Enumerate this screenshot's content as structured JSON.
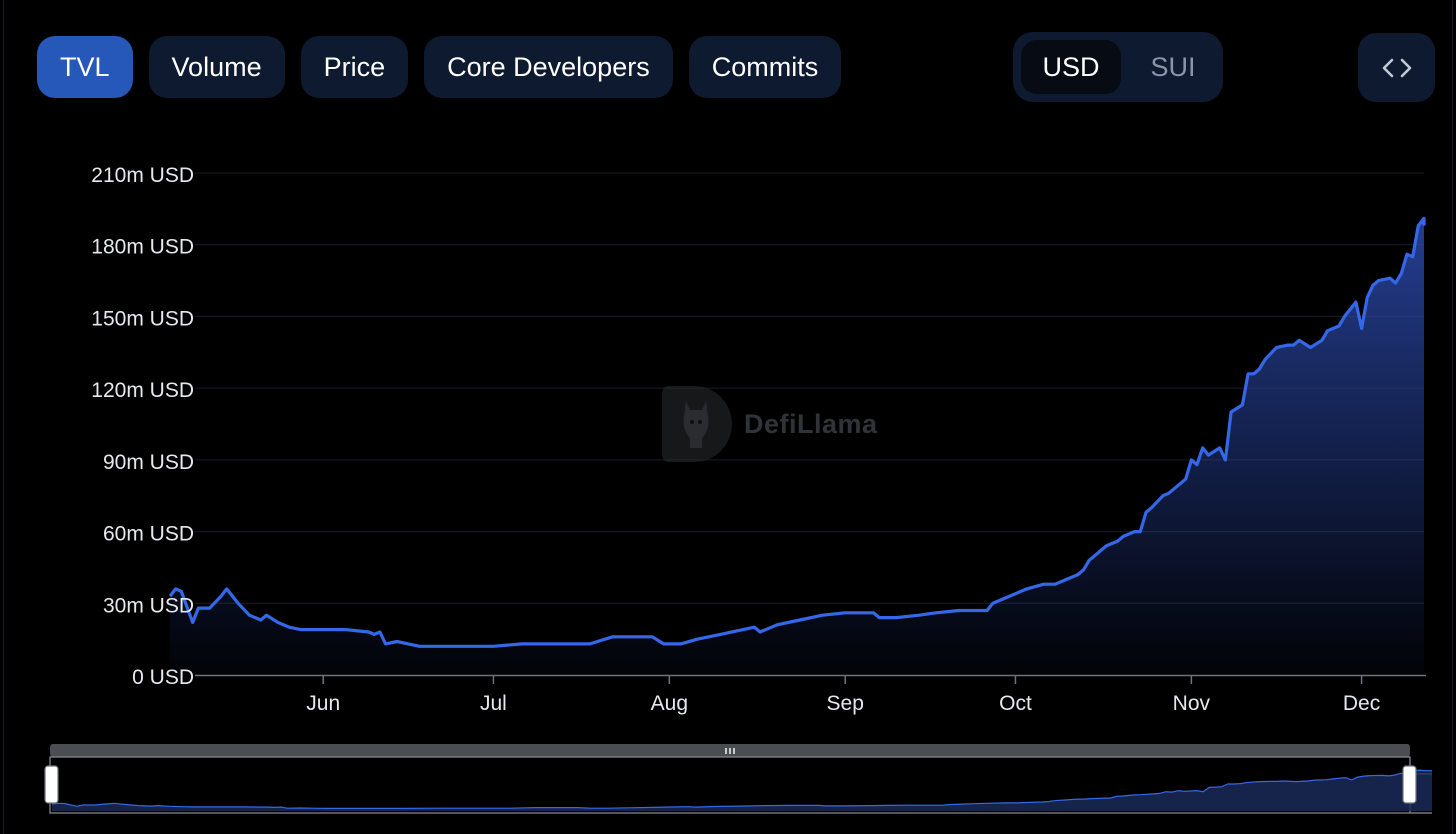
{
  "tabs": [
    {
      "label": "TVL",
      "active": true
    },
    {
      "label": "Volume",
      "active": false
    },
    {
      "label": "Price",
      "active": false
    },
    {
      "label": "Core Developers",
      "active": false
    },
    {
      "label": "Commits",
      "active": false
    }
  ],
  "currency": {
    "options": [
      "USD",
      "SUI"
    ],
    "selected": "USD"
  },
  "embed_icon": "code-brackets-icon",
  "watermark": {
    "text": "DefiLlama",
    "icon": "llama-logo-icon"
  },
  "colors": {
    "line": "#3468e8",
    "area_top": "#2b48a8",
    "tab_active": "#2558b9",
    "tab_bg": "#0e1a30",
    "background": "#000000"
  },
  "chart_data": {
    "type": "area",
    "title": "",
    "xlabel": "",
    "ylabel": "",
    "y_unit": "USD",
    "ylim": [
      0,
      210
    ],
    "y_ticks": [
      0,
      30,
      60,
      90,
      120,
      150,
      180,
      210
    ],
    "y_tick_labels": [
      "0 USD",
      "30m USD",
      "60m USD",
      "90m USD",
      "120m USD",
      "150m USD",
      "180m USD",
      "210m USD"
    ],
    "x_range": [
      "2023-05-05",
      "2023-12-12"
    ],
    "x_ticks": [
      "2023-06-01",
      "2023-07-01",
      "2023-08-01",
      "2023-09-01",
      "2023-10-01",
      "2023-11-01",
      "2023-12-01"
    ],
    "x_tick_labels": [
      "Jun",
      "Jul",
      "Aug",
      "Sep",
      "Oct",
      "Nov",
      "Dec"
    ],
    "grid": true,
    "series": [
      {
        "name": "",
        "unit": "m USD",
        "points": [
          [
            "2023-05-05",
            33
          ],
          [
            "2023-05-06",
            36
          ],
          [
            "2023-05-07",
            35
          ],
          [
            "2023-05-09",
            22
          ],
          [
            "2023-05-10",
            28
          ],
          [
            "2023-05-12",
            28
          ],
          [
            "2023-05-14",
            33
          ],
          [
            "2023-05-15",
            36
          ],
          [
            "2023-05-17",
            30
          ],
          [
            "2023-05-19",
            25
          ],
          [
            "2023-05-21",
            23
          ],
          [
            "2023-05-22",
            25
          ],
          [
            "2023-05-24",
            22
          ],
          [
            "2023-05-26",
            20
          ],
          [
            "2023-05-28",
            19
          ],
          [
            "2023-06-01",
            19
          ],
          [
            "2023-06-05",
            19
          ],
          [
            "2023-06-09",
            18
          ],
          [
            "2023-06-10",
            17
          ],
          [
            "2023-06-11",
            18
          ],
          [
            "2023-06-12",
            13
          ],
          [
            "2023-06-14",
            14
          ],
          [
            "2023-06-16",
            13
          ],
          [
            "2023-06-18",
            12
          ],
          [
            "2023-06-22",
            12
          ],
          [
            "2023-06-27",
            12
          ],
          [
            "2023-07-01",
            12
          ],
          [
            "2023-07-06",
            13
          ],
          [
            "2023-07-12",
            13
          ],
          [
            "2023-07-18",
            13
          ],
          [
            "2023-07-22",
            16
          ],
          [
            "2023-07-25",
            16
          ],
          [
            "2023-07-29",
            16
          ],
          [
            "2023-07-31",
            13
          ],
          [
            "2023-08-03",
            13
          ],
          [
            "2023-08-06",
            15
          ],
          [
            "2023-08-10",
            17
          ],
          [
            "2023-08-14",
            19
          ],
          [
            "2023-08-16",
            20
          ],
          [
            "2023-08-17",
            18
          ],
          [
            "2023-08-20",
            21
          ],
          [
            "2023-08-24",
            23
          ],
          [
            "2023-08-28",
            25
          ],
          [
            "2023-09-01",
            26
          ],
          [
            "2023-09-06",
            26
          ],
          [
            "2023-09-07",
            24
          ],
          [
            "2023-09-10",
            24
          ],
          [
            "2023-09-14",
            25
          ],
          [
            "2023-09-17",
            26
          ],
          [
            "2023-09-21",
            27
          ],
          [
            "2023-09-26",
            27
          ],
          [
            "2023-09-27",
            30
          ],
          [
            "2023-09-29",
            32
          ],
          [
            "2023-10-01",
            34
          ],
          [
            "2023-10-03",
            36
          ],
          [
            "2023-10-06",
            38
          ],
          [
            "2023-10-08",
            38
          ],
          [
            "2023-10-10",
            40
          ],
          [
            "2023-10-12",
            42
          ],
          [
            "2023-10-13",
            44
          ],
          [
            "2023-10-14",
            48
          ],
          [
            "2023-10-16",
            52
          ],
          [
            "2023-10-17",
            54
          ],
          [
            "2023-10-19",
            56
          ],
          [
            "2023-10-20",
            58
          ],
          [
            "2023-10-22",
            60
          ],
          [
            "2023-10-23",
            60
          ],
          [
            "2023-10-24",
            68
          ],
          [
            "2023-10-25",
            70
          ],
          [
            "2023-10-27",
            75
          ],
          [
            "2023-10-28",
            76
          ],
          [
            "2023-10-30",
            80
          ],
          [
            "2023-10-31",
            82
          ],
          [
            "2023-11-01",
            90
          ],
          [
            "2023-11-02",
            88
          ],
          [
            "2023-11-03",
            95
          ],
          [
            "2023-11-04",
            92
          ],
          [
            "2023-11-06",
            95
          ],
          [
            "2023-11-07",
            90
          ],
          [
            "2023-11-08",
            110
          ],
          [
            "2023-11-10",
            113
          ],
          [
            "2023-11-11",
            126
          ],
          [
            "2023-11-12",
            126
          ],
          [
            "2023-11-13",
            128
          ],
          [
            "2023-11-14",
            132
          ],
          [
            "2023-11-16",
            137
          ],
          [
            "2023-11-18",
            138
          ],
          [
            "2023-11-19",
            138
          ],
          [
            "2023-11-20",
            140
          ],
          [
            "2023-11-22",
            137
          ],
          [
            "2023-11-24",
            140
          ],
          [
            "2023-11-25",
            144
          ],
          [
            "2023-11-27",
            146
          ],
          [
            "2023-11-28",
            150
          ],
          [
            "2023-11-29",
            153
          ],
          [
            "2023-11-30",
            156
          ],
          [
            "2023-12-01",
            145
          ],
          [
            "2023-12-02",
            158
          ],
          [
            "2023-12-03",
            163
          ],
          [
            "2023-12-04",
            165
          ],
          [
            "2023-12-06",
            166
          ],
          [
            "2023-12-07",
            164
          ],
          [
            "2023-12-08",
            168
          ],
          [
            "2023-12-09",
            176
          ],
          [
            "2023-12-10",
            175
          ],
          [
            "2023-12-11",
            188
          ],
          [
            "2023-12-12",
            191
          ],
          [
            "2023-12-13",
            188
          ],
          [
            "2023-12-14",
            188
          ]
        ]
      }
    ]
  }
}
